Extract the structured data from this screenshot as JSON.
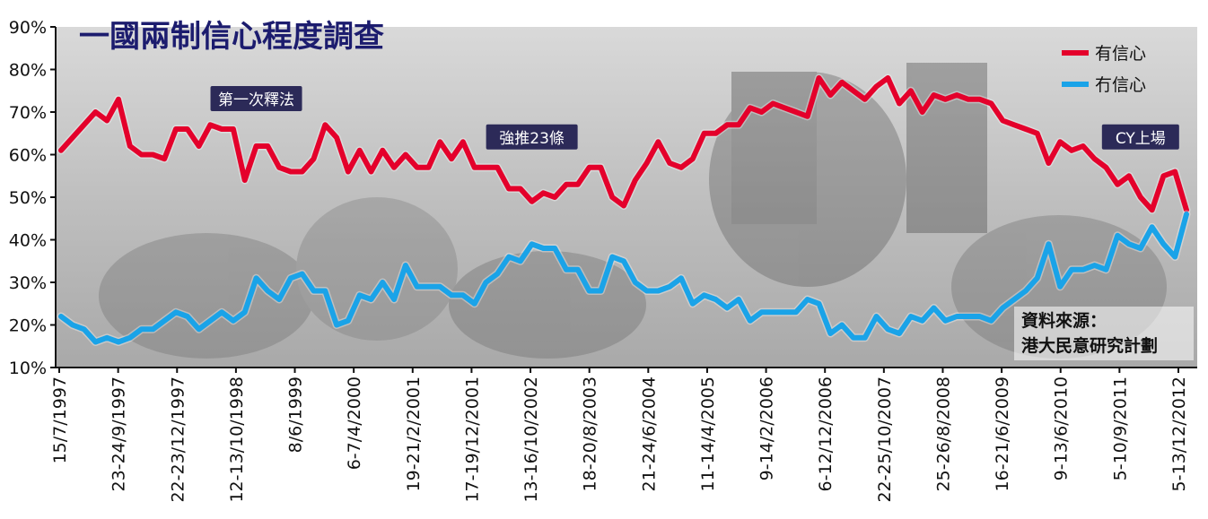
{
  "colors": {
    "confidence": "#e4002b",
    "no_confidence": "#1aa3e8",
    "annotation_bg": "#2c2a58",
    "title": "#1c1c6e"
  },
  "chart_data": {
    "type": "line",
    "title": "一國兩制信心程度調查",
    "xlabel": "",
    "ylabel": "",
    "ylim": [
      10,
      90
    ],
    "yticks": [
      "10%",
      "20%",
      "30%",
      "40%",
      "50%",
      "60%",
      "70%",
      "80%",
      "90%"
    ],
    "xtick_labels": [
      "15/7/1997",
      "23-24/9/1997",
      "22-23/12/1997",
      "12-13/10/1998",
      "8/6/1999",
      "6-7/4/2000",
      "19-21/2/2001",
      "17-19/12/2001",
      "13-16/10/2002",
      "18-20/8/2003",
      "21-24/6/2004",
      "11-14/4/2005",
      "9-14/2/2006",
      "6-12/12/2006",
      "22-25/10/2007",
      "25-26/8/2008",
      "16-21/6/2009",
      "9-13/6/2010",
      "5-10/9/2011",
      "5-13/12/2012"
    ],
    "legend_position": "top-right",
    "grid": false,
    "series": [
      {
        "name": "有信心",
        "color": "#e4002b",
        "values": [
          61,
          64,
          67,
          70,
          68,
          73,
          62,
          60,
          60,
          59,
          66,
          66,
          62,
          67,
          66,
          66,
          54,
          62,
          62,
          57,
          56,
          56,
          59,
          67,
          64,
          56,
          61,
          56,
          61,
          57,
          60,
          57,
          57,
          63,
          59,
          63,
          57,
          57,
          57,
          52,
          52,
          49,
          51,
          50,
          53,
          53,
          57,
          57,
          50,
          48,
          54,
          58,
          63,
          58,
          57,
          59,
          65,
          65,
          67,
          67,
          71,
          70,
          72,
          71,
          70,
          69,
          78,
          74,
          77,
          75,
          73,
          76,
          78,
          72,
          75,
          70,
          74,
          73,
          74,
          73,
          73,
          72,
          68,
          67,
          66,
          65,
          58,
          63,
          61,
          62,
          59,
          57,
          53,
          55,
          50,
          47,
          55,
          56,
          47
        ]
      },
      {
        "name": "冇信心",
        "color": "#1aa3e8",
        "values": [
          22,
          20,
          19,
          16,
          17,
          16,
          17,
          19,
          19,
          21,
          23,
          22,
          19,
          21,
          23,
          21,
          23,
          31,
          28,
          26,
          31,
          32,
          28,
          28,
          20,
          21,
          27,
          26,
          30,
          26,
          34,
          29,
          29,
          29,
          27,
          27,
          25,
          30,
          32,
          36,
          35,
          39,
          38,
          38,
          33,
          33,
          28,
          28,
          36,
          35,
          30,
          28,
          28,
          29,
          31,
          25,
          27,
          26,
          24,
          26,
          21,
          23,
          23,
          23,
          23,
          26,
          25,
          18,
          20,
          17,
          17,
          22,
          19,
          18,
          22,
          21,
          24,
          21,
          22,
          22,
          22,
          21,
          24,
          26,
          28,
          31,
          39,
          29,
          33,
          33,
          34,
          33,
          41,
          39,
          38,
          43,
          39,
          36,
          46
        ]
      }
    ]
  },
  "annotations": [
    {
      "text": "第一次釋法",
      "index": 17
    },
    {
      "text": "強推23條",
      "index": 41
    },
    {
      "text": "CY上場",
      "index": 94
    }
  ],
  "source": {
    "line1": "資料來源：",
    "line2": "港大民意研究計劃"
  }
}
